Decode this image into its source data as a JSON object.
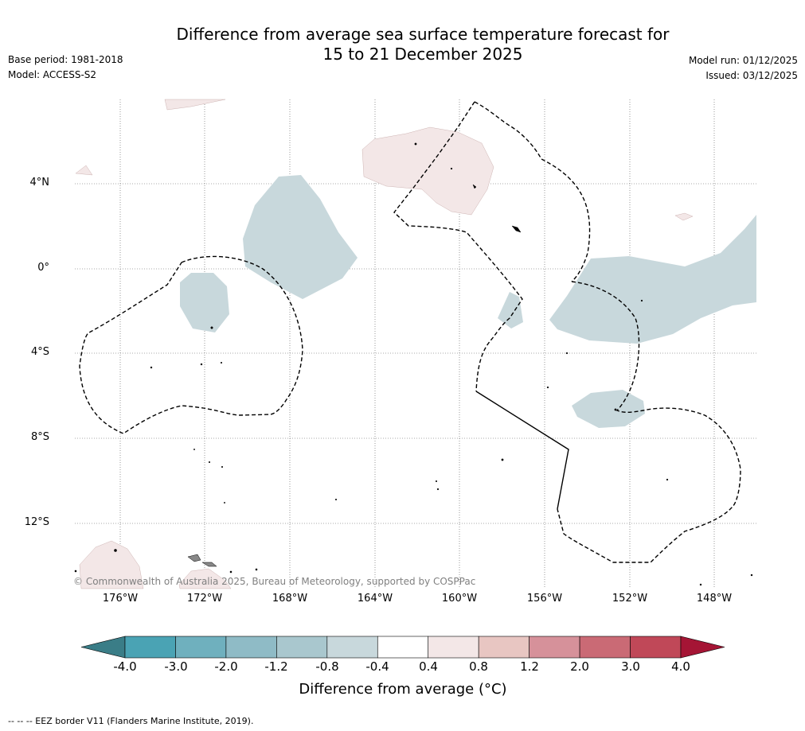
{
  "title": {
    "line1": "Difference from average sea surface temperature forecast for",
    "line2": "15 to 21 December 2025"
  },
  "meta": {
    "base_period": "Base period: 1981-2018",
    "model": "Model: ACCESS-S2",
    "model_run": "Model run: 01/12/2025",
    "issued": "Issued: 03/12/2025"
  },
  "map": {
    "lat_labels": [
      "4°N",
      "0°",
      "4°S",
      "8°S",
      "12°S"
    ],
    "lon_labels": [
      "176°W",
      "172°W",
      "168°W",
      "164°W",
      "160°W",
      "156°W",
      "152°W",
      "148°W"
    ],
    "copyright": "© Commonwealth of Australia 2025, Bureau of Meteorology, supported by COSPPac"
  },
  "colorbar": {
    "ticks": [
      "-4.0",
      "-3.0",
      "-2.0",
      "-1.2",
      "-0.8",
      "-0.4",
      "0.4",
      "0.8",
      "1.2",
      "2.0",
      "3.0",
      "4.0"
    ],
    "colors": [
      "#4aa3b4",
      "#6fb0be",
      "#8fbbc6",
      "#a9c7ce",
      "#c8d8dc",
      "#ffffff",
      "#f3e7e7",
      "#e8c6c2",
      "#d6919a",
      "#ca6a75",
      "#c04858"
    ],
    "low_extend_color": "#3a7d87",
    "high_extend_color": "#a51535",
    "title": "Difference from average (°C)"
  },
  "footnote": "--  --  -- EEZ border V11 (Flanders Marine Institute, 2019)."
}
